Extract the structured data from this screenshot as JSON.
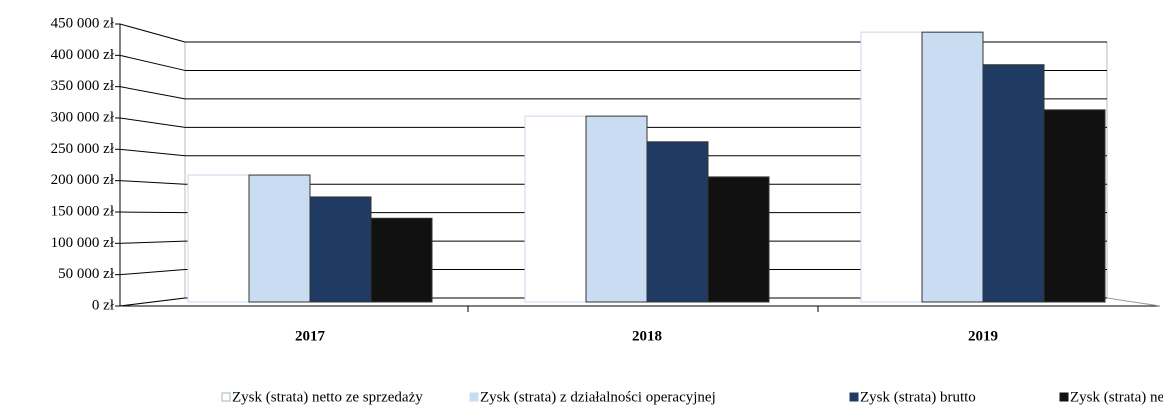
{
  "chart_data": {
    "type": "bar",
    "categories": [
      "2017",
      "2018",
      "2019"
    ],
    "series": [
      {
        "name": "Zysk (strata) netto ze sprzedaży",
        "color": "#ffffff",
        "values": [
          209000,
          303000,
          437000
        ]
      },
      {
        "name": "Zysk (strata) z działalności operacyjnej",
        "color": "#c9dcf2",
        "values": [
          209000,
          303000,
          437000
        ]
      },
      {
        "name": "Zysk (strata) brutto",
        "color": "#1f3a63",
        "values": [
          174000,
          262000,
          385000
        ]
      },
      {
        "name": "Zysk  (strata) netto",
        "color": "#111111",
        "values": [
          140000,
          206000,
          313000
        ]
      }
    ],
    "ylim": [
      0,
      450000
    ],
    "yticks": [
      {
        "value": 0,
        "label": "0 zł"
      },
      {
        "value": 50000,
        "label": "50 000 zł"
      },
      {
        "value": 100000,
        "label": "100 000 zł"
      },
      {
        "value": 150000,
        "label": "150 000 zł"
      },
      {
        "value": 200000,
        "label": "200 000 zł"
      },
      {
        "value": 250000,
        "label": "250 000 zł"
      },
      {
        "value": 300000,
        "label": "300 000 zł"
      },
      {
        "value": 350000,
        "label": "350 000 zł"
      },
      {
        "value": 400000,
        "label": "400 000 zł"
      },
      {
        "value": 450000,
        "label": "450 000 zł"
      }
    ],
    "grid": true
  }
}
